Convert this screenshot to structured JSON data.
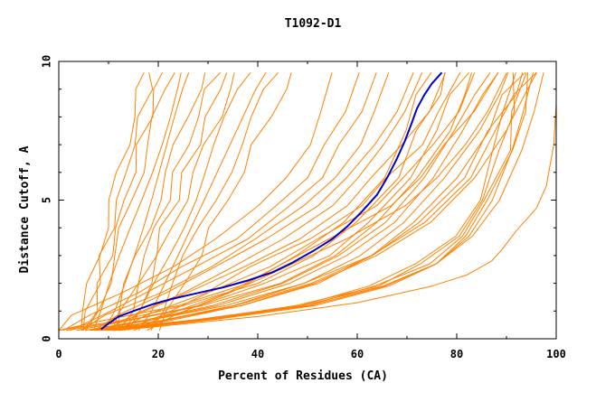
{
  "chart_data": {
    "type": "line",
    "title": "T1092-D1",
    "xlabel": "Percent of Residues (CA)",
    "ylabel": "Distance Cutoff, A",
    "xlim": [
      0,
      100
    ],
    "ylim": [
      0,
      10
    ],
    "x_ticks": [
      "0",
      "20",
      "40",
      "60",
      "80",
      "100"
    ],
    "y_ticks": [
      "0",
      "5",
      "10"
    ],
    "grid": false,
    "legend": "none",
    "colors": {
      "models": "#ff8000",
      "highlight": "#0000cc",
      "axes": "#000000"
    },
    "highlight_series": {
      "x": [
        8.5,
        10,
        12,
        15,
        19,
        23,
        28,
        33,
        38,
        43,
        47,
        51,
        55,
        58,
        61,
        64,
        66,
        68,
        69.5,
        71,
        72,
        73.5,
        75,
        77
      ],
      "y": [
        0.35,
        0.55,
        0.8,
        1.0,
        1.25,
        1.45,
        1.65,
        1.85,
        2.1,
        2.4,
        2.75,
        3.15,
        3.6,
        4.05,
        4.6,
        5.2,
        5.8,
        6.5,
        7.1,
        7.8,
        8.3,
        8.8,
        9.2,
        9.6
      ]
    },
    "series_groups": [
      {
        "points": [
          [
            4.5,
            0.3
          ],
          [
            6,
            1.0
          ],
          [
            7.5,
            2.0
          ],
          [
            9,
            3.0
          ],
          [
            10.5,
            4.0
          ],
          [
            12,
            5.0
          ],
          [
            13.5,
            6.0
          ],
          [
            15,
            7.0
          ],
          [
            16.5,
            8.0
          ],
          [
            18,
            9.0
          ],
          [
            19,
            9.6
          ]
        ],
        "x_offsets": [
          -1.5,
          0,
          1.5,
          3,
          5,
          7,
          9,
          11,
          13,
          15,
          17,
          19,
          22,
          25
        ]
      },
      {
        "points": [
          [
            5,
            0.3
          ],
          [
            10,
            0.85
          ],
          [
            20,
            1.65
          ],
          [
            30,
            2.6
          ],
          [
            40,
            3.6
          ],
          [
            50,
            4.8
          ],
          [
            55,
            5.8
          ],
          [
            60,
            7.0
          ],
          [
            64,
            8.2
          ],
          [
            67,
            9.6
          ]
        ],
        "x_offsets": [
          -10,
          -6,
          -3,
          0,
          3,
          6,
          9,
          12,
          15,
          18,
          21
        ]
      },
      {
        "points": [
          [
            8,
            0.3
          ],
          [
            20,
            0.65
          ],
          [
            35,
            1.2
          ],
          [
            50,
            2.0
          ],
          [
            62,
            3.0
          ],
          [
            72,
            4.2
          ],
          [
            80,
            5.8
          ],
          [
            86,
            7.5
          ],
          [
            90,
            8.8
          ],
          [
            93,
            9.6
          ]
        ],
        "x_offsets": [
          -16,
          -13,
          -10,
          -8,
          -6,
          -4,
          -2,
          0,
          1,
          2,
          3
        ]
      },
      {
        "points": [
          [
            10,
            0.3
          ],
          [
            30,
            0.7
          ],
          [
            50,
            1.2
          ],
          [
            65,
            1.9
          ],
          [
            75,
            2.7
          ],
          [
            82,
            3.7
          ],
          [
            87,
            5.0
          ],
          [
            91,
            6.8
          ],
          [
            93,
            8.2
          ],
          [
            94.5,
            9.6
          ]
        ],
        "x_offsets": [
          -3,
          -2,
          -1,
          0,
          1,
          2
        ]
      }
    ],
    "outlier_series": {
      "x": [
        12,
        40,
        60,
        75,
        82,
        87,
        89,
        92,
        96,
        98,
        99.5,
        100,
        100
      ],
      "y": [
        0.3,
        0.8,
        1.3,
        1.9,
        2.3,
        2.8,
        3.2,
        3.9,
        4.7,
        5.5,
        7.0,
        8.5,
        9.6
      ]
    }
  }
}
